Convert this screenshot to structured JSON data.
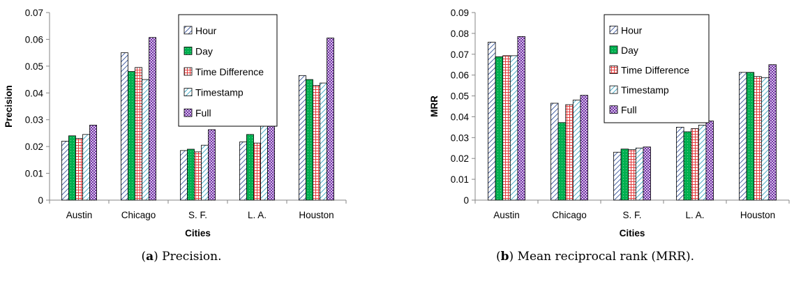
{
  "captions": [
    {
      "letter": "a",
      "text": "Precision."
    },
    {
      "letter": "b",
      "text": "Mean reciprocal rank (MRR)."
    }
  ],
  "series_colors": {
    "Hour": "#dce6f2",
    "Day": "#00b050",
    "Time Difference": "#ff9999",
    "Timestamp": "#b7dee8",
    "Full": "#b08fd0"
  },
  "chart_data": [
    {
      "type": "bar",
      "xlabel": "Cities",
      "ylabel": "Precision",
      "categories": [
        "Austin",
        "Chicago",
        "S. F.",
        "L. A.",
        "Houston"
      ],
      "ylim": [
        0,
        0.07
      ],
      "yticks": [
        "0",
        "0.01",
        "0.02",
        "0.03",
        "0.04",
        "0.05",
        "0.06",
        "0.07"
      ],
      "legend_position": "top-center",
      "series": [
        {
          "name": "Hour",
          "values": [
            0.022,
            0.055,
            0.0185,
            0.0217,
            0.0465
          ]
        },
        {
          "name": "Day",
          "values": [
            0.024,
            0.048,
            0.019,
            0.0245,
            0.045
          ]
        },
        {
          "name": "Time Difference",
          "values": [
            0.023,
            0.0495,
            0.018,
            0.0213,
            0.0428
          ]
        },
        {
          "name": "Timestamp",
          "values": [
            0.0245,
            0.045,
            0.0205,
            0.0293,
            0.0437
          ]
        },
        {
          "name": "Full",
          "values": [
            0.028,
            0.0607,
            0.0263,
            0.0338,
            0.0605
          ]
        }
      ]
    },
    {
      "type": "bar",
      "xlabel": "Cities",
      "ylabel": "MRR",
      "categories": [
        "Austin",
        "Chicago",
        "S. F.",
        "L. A.",
        "Houston"
      ],
      "ylim": [
        0,
        0.09
      ],
      "yticks": [
        "0",
        "0.01",
        "0.02",
        "0.03",
        "0.04",
        "0.05",
        "0.06",
        "0.07",
        "0.08",
        "0.09"
      ],
      "legend_position": "top-center",
      "series": [
        {
          "name": "Hour",
          "values": [
            0.0758,
            0.0465,
            0.023,
            0.035,
            0.0613
          ]
        },
        {
          "name": "Day",
          "values": [
            0.0688,
            0.0372,
            0.0245,
            0.0328,
            0.0613
          ]
        },
        {
          "name": "Time Difference",
          "values": [
            0.0693,
            0.0458,
            0.0242,
            0.0343,
            0.0593
          ]
        },
        {
          "name": "Timestamp",
          "values": [
            0.0693,
            0.048,
            0.025,
            0.036,
            0.0588
          ]
        },
        {
          "name": "Full",
          "values": [
            0.0785,
            0.0503,
            0.0255,
            0.038,
            0.065
          ]
        }
      ]
    }
  ]
}
